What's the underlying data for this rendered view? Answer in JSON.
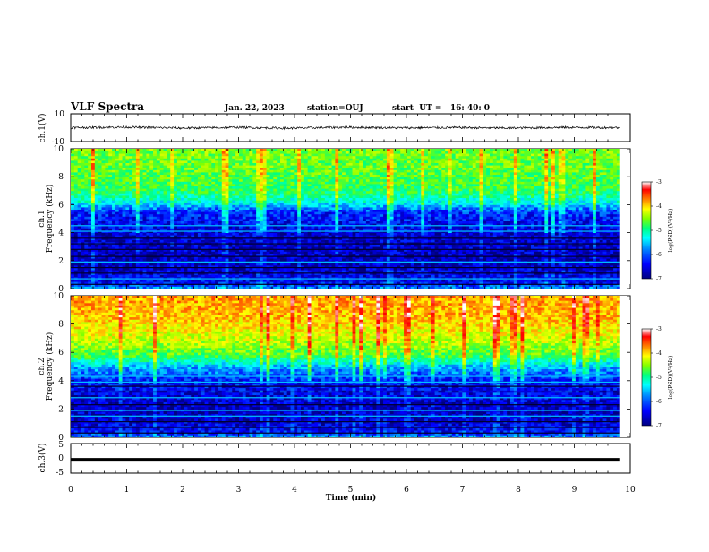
{
  "header": {
    "title": "VLF Spectra",
    "date": "Jan. 22, 2023",
    "station": "station=OUJ",
    "start": "start  UT =   16: 40: 0"
  },
  "colors": {
    "background": "#ffffff",
    "axes": "#000000",
    "colormap": [
      "#000080",
      "#0000ff",
      "#0080ff",
      "#00ffff",
      "#00ff80",
      "#80ff00",
      "#ffff00",
      "#ff8000",
      "#ff0000",
      "#ffffff"
    ]
  },
  "chart_data": [
    {
      "type": "line",
      "panel": "ch1-waveform",
      "ylabel": "ch.1(V)",
      "ylim": [
        -10,
        10
      ],
      "yticks": [
        "10",
        "-10"
      ],
      "xlim": [
        0,
        10
      ],
      "series": [
        {
          "values": [
            0,
            0.4,
            -0.3,
            0.2,
            -0.4,
            0.3,
            -0.2,
            0.1,
            -0.3,
            0.2,
            0
          ]
        }
      ]
    },
    {
      "type": "heatmap",
      "panel": "ch1-spectrogram",
      "ylabel_lines": [
        "ch.1",
        "Frequency (kHz)"
      ],
      "ylim": [
        0,
        10
      ],
      "xlim": [
        0,
        10
      ],
      "yticks": [
        "0",
        "2",
        "4",
        "6",
        "8",
        "10"
      ],
      "colorbar": {
        "label": "log(PSD)(V²/Hz)",
        "range": [
          -7,
          -3
        ],
        "ticks": [
          "-3",
          "-4",
          "-5",
          "-6",
          "-7"
        ]
      },
      "profile_log_psd": [
        {
          "f": 0,
          "v": -6.0
        },
        {
          "f": 0.5,
          "v": -6.6
        },
        {
          "f": 2,
          "v": -6.8
        },
        {
          "f": 4,
          "v": -6.7
        },
        {
          "f": 5.5,
          "v": -6.4
        },
        {
          "f": 6.2,
          "v": -5.6
        },
        {
          "f": 7,
          "v": -5.1
        },
        {
          "f": 8.5,
          "v": -4.9
        },
        {
          "f": 10,
          "v": -4.8
        }
      ],
      "horizontal_lines_khz": [
        0.3,
        0.7,
        1.1,
        1.5,
        1.9,
        2.3,
        2.8,
        3.2,
        3.6,
        4.1,
        4.5
      ]
    },
    {
      "type": "heatmap",
      "panel": "ch2-spectrogram",
      "ylabel_lines": [
        "ch.2",
        "Frequency (kHz)"
      ],
      "ylim": [
        0,
        10
      ],
      "xlim": [
        0,
        10
      ],
      "yticks": [
        "0",
        "2",
        "4",
        "6",
        "8",
        "10"
      ],
      "colorbar": {
        "label": "log(PSD)(V²/Hz)",
        "range": [
          -7,
          -3
        ],
        "ticks": [
          "-3",
          "-4",
          "-5",
          "-6",
          "-7"
        ]
      },
      "profile_log_psd": [
        {
          "f": 0,
          "v": -6.0
        },
        {
          "f": 0.5,
          "v": -6.6
        },
        {
          "f": 2,
          "v": -6.8
        },
        {
          "f": 4,
          "v": -6.5
        },
        {
          "f": 5,
          "v": -5.9
        },
        {
          "f": 5.8,
          "v": -5.0
        },
        {
          "f": 7,
          "v": -4.5
        },
        {
          "f": 8.5,
          "v": -4.1
        },
        {
          "f": 10,
          "v": -4.0
        }
      ],
      "horizontal_lines_khz": [
        0.3,
        0.7,
        1.1,
        1.5,
        1.9,
        2.3,
        2.8,
        3.2,
        3.6,
        3.9,
        4.3
      ]
    },
    {
      "type": "line",
      "panel": "ch3-waveform",
      "ylabel": "ch.3(V)",
      "ylim": [
        -5,
        5
      ],
      "yticks": [
        "5",
        "0",
        "-5"
      ],
      "xlim": [
        0,
        10
      ],
      "xlabel": "Time (min)",
      "xticks": [
        "0",
        "1",
        "2",
        "3",
        "4",
        "5",
        "6",
        "7",
        "8",
        "9",
        "10"
      ],
      "series": [
        {
          "values": [
            -0.5,
            -0.5
          ]
        }
      ]
    }
  ]
}
